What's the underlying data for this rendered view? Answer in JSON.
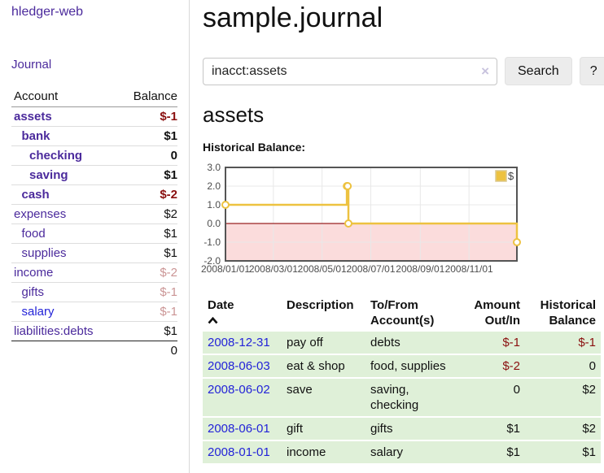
{
  "sidebar": {
    "brand": "hledger-web",
    "journal_link": "Journal",
    "accounts_table": {
      "header": {
        "account": "Account",
        "balance": "Balance"
      },
      "rows": [
        {
          "name": "assets",
          "balance": "$-1",
          "indent": 0,
          "bold": true,
          "balance_tone": "negative",
          "link_tone": "visited"
        },
        {
          "name": "bank",
          "balance": "$1",
          "indent": 1,
          "bold": true,
          "balance_tone": "normal",
          "link_tone": "visited"
        },
        {
          "name": "checking",
          "balance": "0",
          "indent": 2,
          "bold": true,
          "balance_tone": "normal",
          "link_tone": "visited"
        },
        {
          "name": "saving",
          "balance": "$1",
          "indent": 2,
          "bold": true,
          "balance_tone": "normal",
          "link_tone": "visited"
        },
        {
          "name": "cash",
          "balance": "$-2",
          "indent": 1,
          "bold": true,
          "balance_tone": "negative",
          "link_tone": "visited"
        },
        {
          "name": "expenses",
          "balance": "$2",
          "indent": 0,
          "bold": false,
          "balance_tone": "normal",
          "link_tone": "visited"
        },
        {
          "name": "food",
          "balance": "$1",
          "indent": 1,
          "bold": false,
          "balance_tone": "normal",
          "link_tone": "visited"
        },
        {
          "name": "supplies",
          "balance": "$1",
          "indent": 1,
          "bold": false,
          "balance_tone": "normal",
          "link_tone": "visited"
        },
        {
          "name": "income",
          "balance": "$-2",
          "indent": 0,
          "bold": false,
          "balance_tone": "negative-dim",
          "link_tone": "visited"
        },
        {
          "name": "gifts",
          "balance": "$-1",
          "indent": 1,
          "bold": false,
          "balance_tone": "negative-dim",
          "link_tone": "visited"
        },
        {
          "name": "salary",
          "balance": "$-1",
          "indent": 1,
          "bold": false,
          "balance_tone": "negative-dim",
          "link_tone": "unvisited"
        },
        {
          "name": "liabilities:debts",
          "balance": "$1",
          "indent": 0,
          "bold": false,
          "balance_tone": "normal",
          "link_tone": "visited"
        }
      ],
      "total": "0"
    }
  },
  "main": {
    "title": "sample.journal",
    "search": {
      "value": "inacct:assets",
      "clear_icon": "×",
      "search_button": "Search",
      "help_button": "?"
    },
    "account_heading": "assets",
    "chart_label": "Historical Balance:",
    "register": {
      "header": {
        "date": "Date",
        "description": "Description",
        "tofrom": [
          "To/From",
          "Account(s)"
        ],
        "amount": [
          "Amount",
          "Out/In"
        ],
        "historical": [
          "Historical",
          "Balance"
        ]
      },
      "rows": [
        {
          "date": "2008-12-31",
          "description": "pay off",
          "accounts": "debts",
          "amount": "$-1",
          "amount_negative": true,
          "balance": "$-1",
          "balance_negative": true
        },
        {
          "date": "2008-06-03",
          "description": "eat & shop",
          "accounts": "food, supplies",
          "amount": "$-2",
          "amount_negative": true,
          "balance": "0",
          "balance_negative": false
        },
        {
          "date": "2008-06-02",
          "description": "save",
          "accounts": "saving, checking",
          "amount": "0",
          "amount_negative": false,
          "balance": "$2",
          "balance_negative": false
        },
        {
          "date": "2008-06-01",
          "description": "gift",
          "accounts": "gifts",
          "amount": "$1",
          "amount_negative": false,
          "balance": "$2",
          "balance_negative": false
        },
        {
          "date": "2008-01-01",
          "description": "income",
          "accounts": "salary",
          "amount": "$1",
          "amount_negative": false,
          "balance": "$1",
          "balance_negative": false
        }
      ]
    }
  },
  "chart_data": {
    "type": "line",
    "step": true,
    "title": "Historical Balance",
    "legend": {
      "label": "$",
      "position": "top-right"
    },
    "xlim": [
      "2008-01-01",
      "2008-12-31"
    ],
    "ylim": [
      -2,
      3
    ],
    "grid": true,
    "x_ticks": [
      {
        "date": "2008-01-01",
        "label": "2008/01/01"
      },
      {
        "date": "2008-03-01",
        "label": "2008/03/01"
      },
      {
        "date": "2008-05-01",
        "label": "2008/05/01"
      },
      {
        "date": "2008-07-01",
        "label": "2008/07/01"
      },
      {
        "date": "2008-09-01",
        "label": "2008/09/01"
      },
      {
        "date": "2008-11-01",
        "label": "2008/11/01"
      }
    ],
    "y_ticks": [
      {
        "value": 3,
        "label": "3.0"
      },
      {
        "value": 2,
        "label": "2.0"
      },
      {
        "value": 1,
        "label": "1.0"
      },
      {
        "value": 0,
        "label": "0.0"
      },
      {
        "value": -1,
        "label": "-1.0"
      },
      {
        "value": -2,
        "label": "-2.0"
      }
    ],
    "series": [
      {
        "name": "$",
        "points": [
          {
            "date": "2008-01-01",
            "value": 1
          },
          {
            "date": "2008-06-01",
            "value": 2
          },
          {
            "date": "2008-06-02",
            "value": 2
          },
          {
            "date": "2008-06-03",
            "value": 0
          },
          {
            "date": "2008-12-31",
            "value": -1
          }
        ]
      }
    ],
    "line_color": "#edc240",
    "negative_region_color": "#fbdcdc",
    "zero_line_color": "#992222",
    "grid_color": "#e8e8e8",
    "border_color": "#555555"
  },
  "colors": {
    "link_purple": "#4b2a9c",
    "link_blue": "#2323d8",
    "negative": "#8a0f0f",
    "row_green": "#dff0d8",
    "chart_line": "#edc240"
  }
}
